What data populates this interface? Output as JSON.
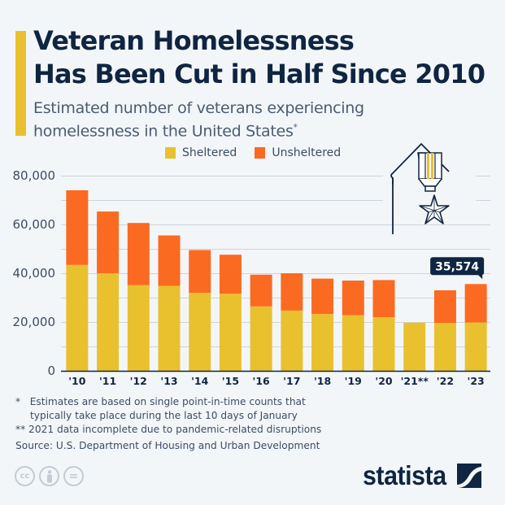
{
  "header": {
    "title_line1": "Veteran Homelessness",
    "title_line2": "Has Been Cut in Half Since 2010",
    "subtitle_line1": "Estimated number of veterans experiencing",
    "subtitle_line2": "homelessness in the United States",
    "subtitle_mark": "*"
  },
  "colors": {
    "sheltered": "#e9c12f",
    "unsheltered": "#fb6a21",
    "text": "#0f2541",
    "accent": "#e9c12f",
    "callout_bg": "#0f2541"
  },
  "callout": {
    "label": "35,574",
    "category": "'23"
  },
  "chart_data": {
    "type": "bar",
    "stacked": true,
    "title": "Veteran Homelessness Has Been Cut in Half Since 2010",
    "subtitle": "Estimated number of veterans experiencing homelessness in the United States*",
    "xlabel": "",
    "ylabel": "",
    "ylim": [
      0,
      80000
    ],
    "yticks": [
      0,
      20000,
      40000,
      60000,
      80000
    ],
    "ytick_labels": [
      "0",
      "20,000",
      "40,000",
      "60,000",
      "80,000"
    ],
    "grid": true,
    "grid_step": 10000,
    "legend_position": "top-center",
    "categories": [
      "'10",
      "'11",
      "'12",
      "'13",
      "'14",
      "'15",
      "'16",
      "'17",
      "'18",
      "'19",
      "'20",
      "'21**",
      "'22",
      "'23"
    ],
    "series": [
      {
        "name": "Sheltered",
        "values": [
          43400,
          40000,
          35100,
          34800,
          32000,
          31600,
          26400,
          24700,
          23300,
          22800,
          22000,
          19750,
          19600,
          19800
        ]
      },
      {
        "name": "Unsheltered",
        "values": [
          30600,
          25300,
          25500,
          20700,
          17500,
          16000,
          13000,
          15300,
          14500,
          14200,
          15200,
          0,
          13400,
          15774
        ]
      }
    ],
    "totals": [
      74000,
      65300,
      60600,
      55500,
      49500,
      47600,
      39400,
      40000,
      37800,
      37000,
      37200,
      19750,
      33000,
      35574
    ],
    "annotations": [
      {
        "category": "'23",
        "text": "35,574"
      }
    ]
  },
  "footnotes": {
    "note1_mark": "*",
    "note1_line1": "Estimates are based on single point-in-time counts that",
    "note1_line2": "typically take place during the last 10 days of January",
    "note2": "** 2021 data incomplete due to pandemic-related disruptions",
    "source": "Source: U.S. Department of Housing and Urban Development"
  },
  "license_icons": [
    "cc-icon",
    "attribution-icon",
    "no-derivatives-icon"
  ],
  "license_labels": {
    "cc": "cc",
    "nd": "="
  },
  "brand": {
    "name": "statista"
  }
}
